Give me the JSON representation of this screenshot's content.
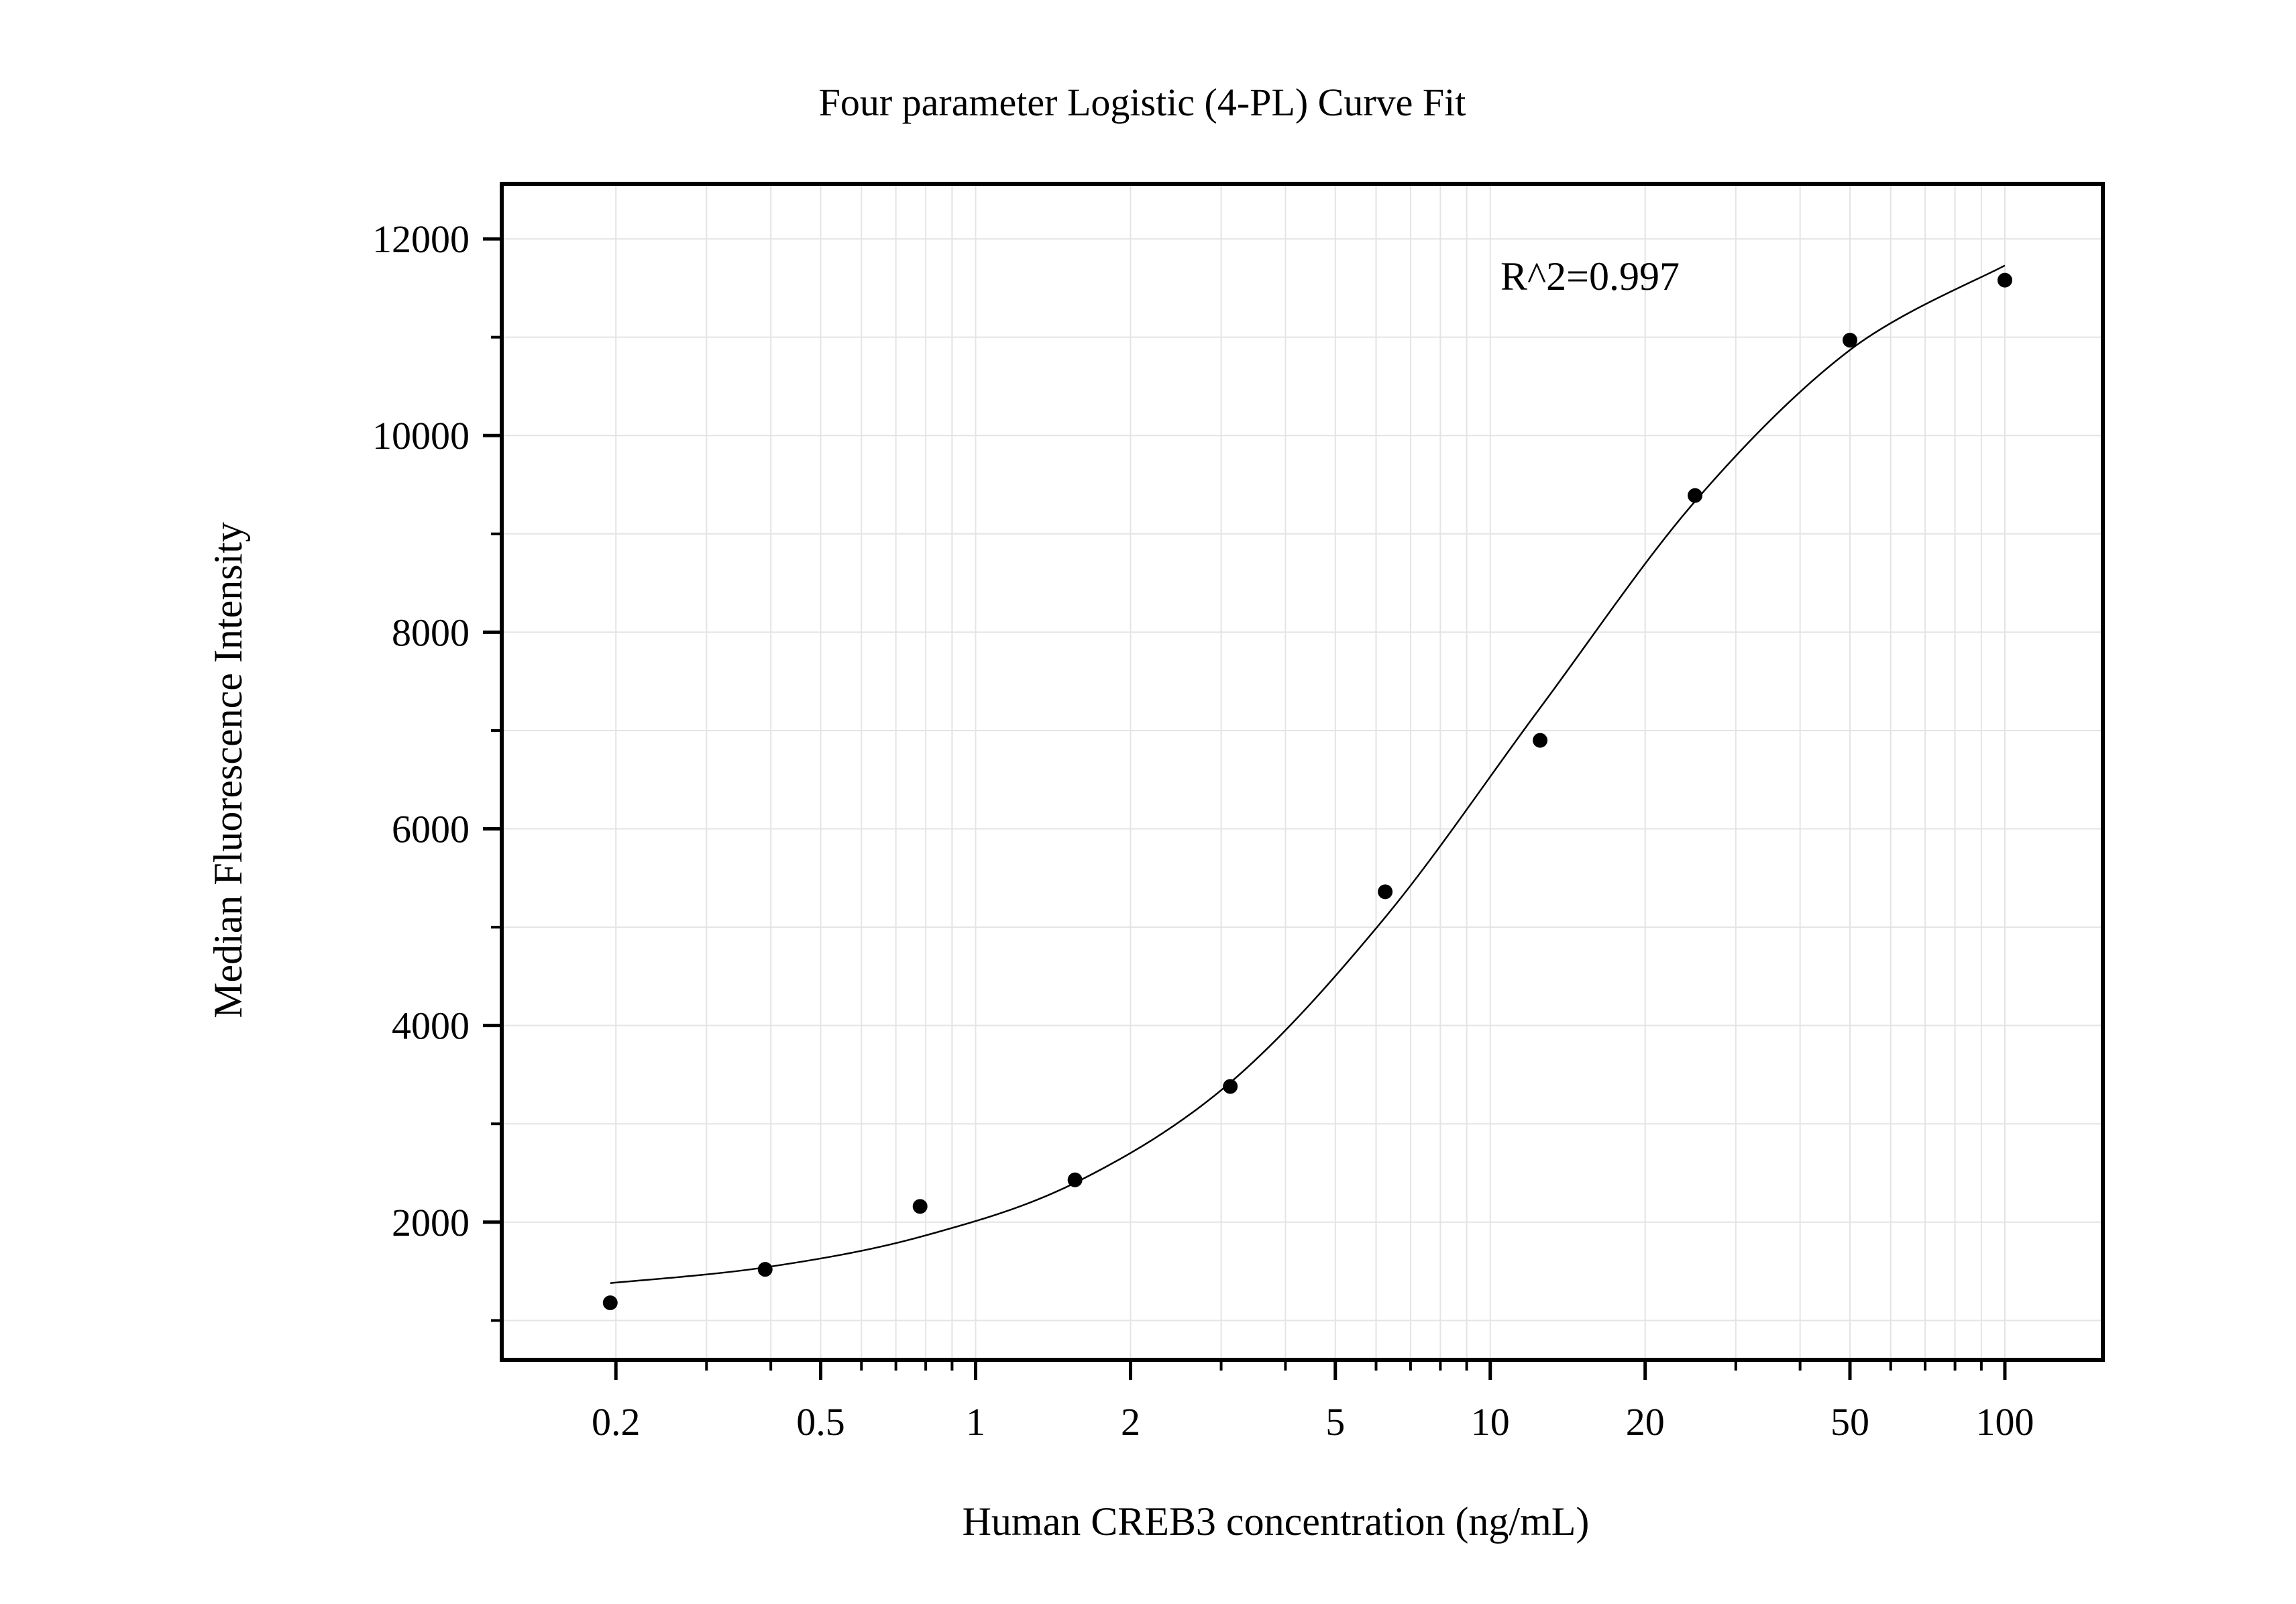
{
  "chart_data": {
    "type": "scatter",
    "title": "Four parameter Logistic (4-PL) Curve Fit",
    "xlabel": "Human CREB3 concentration (ng/mL)",
    "ylabel": "Median Fluorescence Intensity",
    "annotation": "R^2=0.997",
    "x_scale": "log",
    "xlim": [
      0.12,
      155
    ],
    "ylim": [
      600,
      12560
    ],
    "x_ticks": [
      0.2,
      0.5,
      1,
      2,
      5,
      10,
      20,
      50,
      100
    ],
    "x_tick_labels": [
      "0.2",
      "0.5",
      "1",
      "2",
      "5",
      "10",
      "20",
      "50",
      "100"
    ],
    "y_ticks": [
      2000,
      4000,
      6000,
      8000,
      10000,
      12000
    ],
    "y_tick_labels": [
      "2000",
      "4000",
      "6000",
      "8000",
      "10000",
      "12000"
    ],
    "y_minor_ticks": [
      1000,
      3000,
      5000,
      7000,
      9000,
      11000
    ],
    "grid": true,
    "series": [
      {
        "type": "scatter",
        "x": [
          0.195,
          0.39,
          0.78,
          1.56,
          3.125,
          6.25,
          12.5,
          25,
          50,
          100
        ],
        "y": [
          1180,
          1520,
          2160,
          2430,
          3380,
          5360,
          6900,
          9390,
          10970,
          11580
        ]
      },
      {
        "type": "line",
        "x": [
          0.195,
          0.39,
          0.78,
          1.56,
          3.125,
          6.25,
          12.5,
          25,
          50,
          100
        ],
        "y": [
          1380,
          1540,
          1850,
          2400,
          3420,
          5100,
          7230,
          9330,
          10870,
          11730
        ]
      }
    ],
    "colors": {
      "points": "#000000",
      "curve": "#000000",
      "grid": "#e4e4e4",
      "frame": "#000000"
    }
  }
}
